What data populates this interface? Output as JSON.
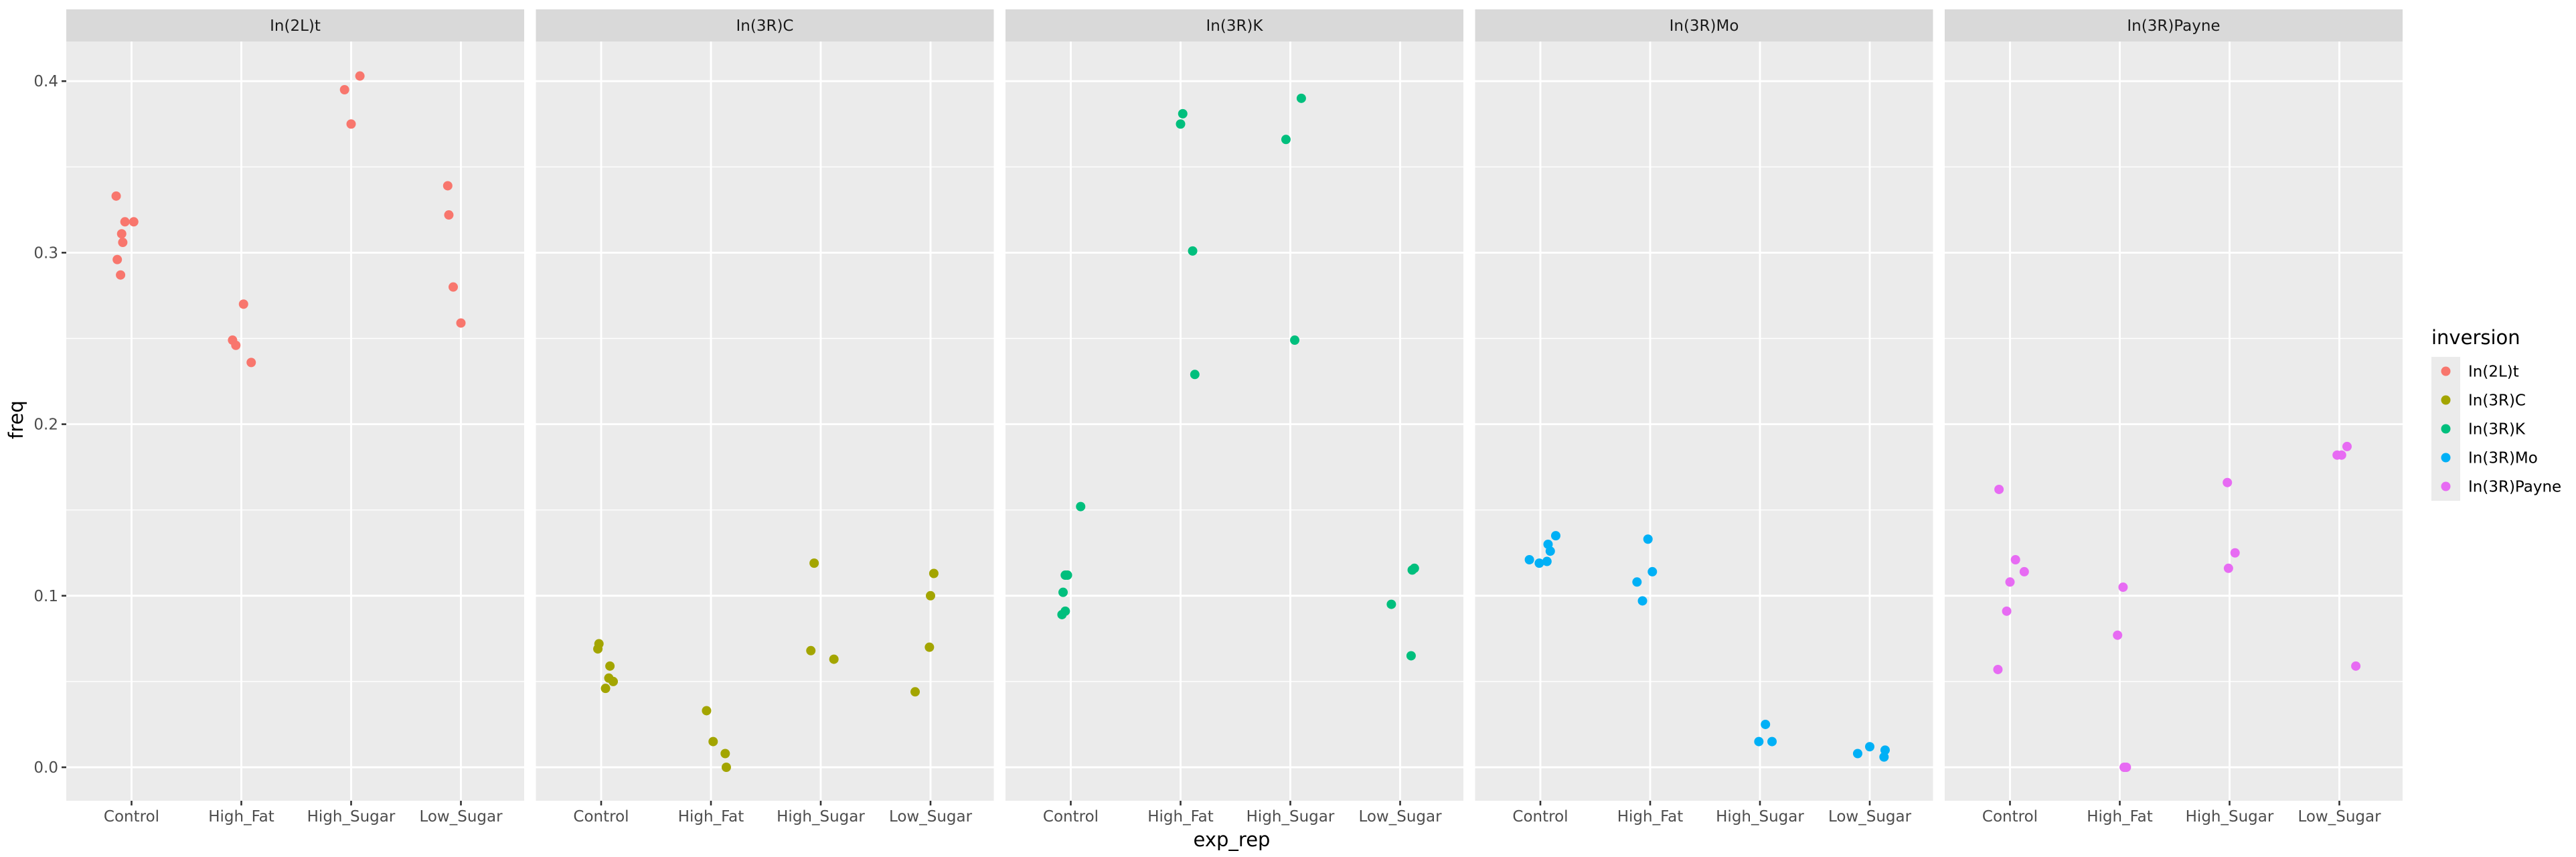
{
  "chart_data": {
    "type": "scatter",
    "xlabel": "exp_rep",
    "ylabel": "freq",
    "categories": [
      "Control",
      "High_Fat",
      "High_Sugar",
      "Low_Sugar"
    ],
    "facets": [
      "In(2L)t",
      "In(3R)C",
      "In(3R)K",
      "In(3R)Mo",
      "In(3R)Payne"
    ],
    "ylim": [
      -0.02,
      0.42
    ],
    "yticks": [
      0.0,
      0.1,
      0.2,
      0.3,
      0.4
    ],
    "ytick_labels": [
      "0.0",
      "0.1",
      "0.2",
      "0.3",
      "0.4"
    ],
    "grid": true,
    "legend": {
      "title": "inversion",
      "position": "right",
      "entries": [
        "In(2L)t",
        "In(3R)C",
        "In(3R)K",
        "In(3R)Mo",
        "In(3R)Payne"
      ]
    },
    "colors": {
      "In(2L)t": "#F8766D",
      "In(3R)C": "#A3A500",
      "In(3R)K": "#00BF7D",
      "In(3R)Mo": "#00B0F6",
      "In(3R)Payne": "#E76BF3"
    },
    "series": [
      {
        "name": "In(2L)t",
        "points": [
          {
            "x": "Control",
            "jitter": -0.14,
            "y": 0.333
          },
          {
            "x": "Control",
            "jitter": -0.06,
            "y": 0.318
          },
          {
            "x": "Control",
            "jitter": 0.02,
            "y": 0.318
          },
          {
            "x": "Control",
            "jitter": -0.09,
            "y": 0.311
          },
          {
            "x": "Control",
            "jitter": -0.08,
            "y": 0.306
          },
          {
            "x": "Control",
            "jitter": -0.13,
            "y": 0.296
          },
          {
            "x": "Control",
            "jitter": -0.1,
            "y": 0.287
          },
          {
            "x": "High_Fat",
            "jitter": 0.02,
            "y": 0.27
          },
          {
            "x": "High_Fat",
            "jitter": -0.08,
            "y": 0.249
          },
          {
            "x": "High_Fat",
            "jitter": -0.05,
            "y": 0.246
          },
          {
            "x": "High_Fat",
            "jitter": 0.09,
            "y": 0.236
          },
          {
            "x": "High_Sugar",
            "jitter": 0.08,
            "y": 0.403
          },
          {
            "x": "High_Sugar",
            "jitter": -0.06,
            "y": 0.395
          },
          {
            "x": "High_Sugar",
            "jitter": 0.0,
            "y": 0.375
          },
          {
            "x": "Low_Sugar",
            "jitter": -0.12,
            "y": 0.339
          },
          {
            "x": "Low_Sugar",
            "jitter": -0.11,
            "y": 0.322
          },
          {
            "x": "Low_Sugar",
            "jitter": -0.07,
            "y": 0.28
          },
          {
            "x": "Low_Sugar",
            "jitter": 0.0,
            "y": 0.259
          }
        ]
      },
      {
        "name": "In(3R)C",
        "points": [
          {
            "x": "Control",
            "jitter": -0.02,
            "y": 0.072
          },
          {
            "x": "Control",
            "jitter": -0.03,
            "y": 0.069
          },
          {
            "x": "Control",
            "jitter": 0.08,
            "y": 0.059
          },
          {
            "x": "Control",
            "jitter": 0.07,
            "y": 0.052
          },
          {
            "x": "Control",
            "jitter": 0.11,
            "y": 0.05
          },
          {
            "x": "Control",
            "jitter": 0.04,
            "y": 0.046
          },
          {
            "x": "High_Fat",
            "jitter": -0.04,
            "y": 0.033
          },
          {
            "x": "High_Fat",
            "jitter": 0.02,
            "y": 0.015
          },
          {
            "x": "High_Fat",
            "jitter": 0.13,
            "y": 0.008
          },
          {
            "x": "High_Fat",
            "jitter": 0.14,
            "y": 0.0
          },
          {
            "x": "High_Sugar",
            "jitter": -0.06,
            "y": 0.119
          },
          {
            "x": "High_Sugar",
            "jitter": -0.09,
            "y": 0.068
          },
          {
            "x": "High_Sugar",
            "jitter": 0.12,
            "y": 0.063
          },
          {
            "x": "Low_Sugar",
            "jitter": 0.03,
            "y": 0.113
          },
          {
            "x": "Low_Sugar",
            "jitter": 0.0,
            "y": 0.1
          },
          {
            "x": "Low_Sugar",
            "jitter": -0.01,
            "y": 0.07
          },
          {
            "x": "Low_Sugar",
            "jitter": -0.14,
            "y": 0.044
          }
        ]
      },
      {
        "name": "In(3R)K",
        "points": [
          {
            "x": "Control",
            "jitter": 0.09,
            "y": 0.152
          },
          {
            "x": "Control",
            "jitter": -0.05,
            "y": 0.112
          },
          {
            "x": "Control",
            "jitter": -0.03,
            "y": 0.112
          },
          {
            "x": "Control",
            "jitter": -0.07,
            "y": 0.102
          },
          {
            "x": "Control",
            "jitter": -0.05,
            "y": 0.091
          },
          {
            "x": "Control",
            "jitter": -0.08,
            "y": 0.089
          },
          {
            "x": "High_Fat",
            "jitter": 0.02,
            "y": 0.381
          },
          {
            "x": "High_Fat",
            "jitter": 0.0,
            "y": 0.375
          },
          {
            "x": "High_Fat",
            "jitter": 0.11,
            "y": 0.301
          },
          {
            "x": "High_Fat",
            "jitter": 0.13,
            "y": 0.229
          },
          {
            "x": "High_Sugar",
            "jitter": 0.1,
            "y": 0.39
          },
          {
            "x": "High_Sugar",
            "jitter": -0.04,
            "y": 0.366
          },
          {
            "x": "High_Sugar",
            "jitter": 0.04,
            "y": 0.249
          },
          {
            "x": "Low_Sugar",
            "jitter": 0.13,
            "y": 0.116
          },
          {
            "x": "Low_Sugar",
            "jitter": 0.11,
            "y": 0.115
          },
          {
            "x": "Low_Sugar",
            "jitter": -0.08,
            "y": 0.095
          },
          {
            "x": "Low_Sugar",
            "jitter": 0.1,
            "y": 0.065
          }
        ]
      },
      {
        "name": "In(3R)Mo",
        "points": [
          {
            "x": "Control",
            "jitter": 0.14,
            "y": 0.135
          },
          {
            "x": "Control",
            "jitter": 0.07,
            "y": 0.13
          },
          {
            "x": "Control",
            "jitter": 0.09,
            "y": 0.126
          },
          {
            "x": "Control",
            "jitter": -0.1,
            "y": 0.121
          },
          {
            "x": "Control",
            "jitter": 0.06,
            "y": 0.12
          },
          {
            "x": "Control",
            "jitter": -0.01,
            "y": 0.119
          },
          {
            "x": "High_Fat",
            "jitter": -0.02,
            "y": 0.133
          },
          {
            "x": "High_Fat",
            "jitter": 0.02,
            "y": 0.114
          },
          {
            "x": "High_Fat",
            "jitter": -0.12,
            "y": 0.108
          },
          {
            "x": "High_Fat",
            "jitter": -0.07,
            "y": 0.097
          },
          {
            "x": "High_Sugar",
            "jitter": 0.05,
            "y": 0.025
          },
          {
            "x": "High_Sugar",
            "jitter": -0.01,
            "y": 0.015
          },
          {
            "x": "High_Sugar",
            "jitter": 0.11,
            "y": 0.015
          },
          {
            "x": "Low_Sugar",
            "jitter": 0.0,
            "y": 0.012
          },
          {
            "x": "Low_Sugar",
            "jitter": 0.14,
            "y": 0.01
          },
          {
            "x": "Low_Sugar",
            "jitter": -0.11,
            "y": 0.008
          },
          {
            "x": "Low_Sugar",
            "jitter": 0.13,
            "y": 0.006
          }
        ]
      },
      {
        "name": "In(3R)Payne",
        "points": [
          {
            "x": "Control",
            "jitter": -0.1,
            "y": 0.162
          },
          {
            "x": "Control",
            "jitter": 0.05,
            "y": 0.121
          },
          {
            "x": "Control",
            "jitter": 0.13,
            "y": 0.114
          },
          {
            "x": "Control",
            "jitter": 0.0,
            "y": 0.108
          },
          {
            "x": "Control",
            "jitter": -0.03,
            "y": 0.091
          },
          {
            "x": "Control",
            "jitter": -0.11,
            "y": 0.057
          },
          {
            "x": "High_Fat",
            "jitter": 0.03,
            "y": 0.105
          },
          {
            "x": "High_Fat",
            "jitter": -0.02,
            "y": 0.077
          },
          {
            "x": "High_Fat",
            "jitter": 0.04,
            "y": 0.0
          },
          {
            "x": "High_Fat",
            "jitter": 0.06,
            "y": 0.0
          },
          {
            "x": "High_Sugar",
            "jitter": -0.02,
            "y": 0.166
          },
          {
            "x": "High_Sugar",
            "jitter": 0.05,
            "y": 0.125
          },
          {
            "x": "High_Sugar",
            "jitter": -0.01,
            "y": 0.116
          },
          {
            "x": "Low_Sugar",
            "jitter": 0.07,
            "y": 0.187
          },
          {
            "x": "Low_Sugar",
            "jitter": -0.02,
            "y": 0.182
          },
          {
            "x": "Low_Sugar",
            "jitter": 0.02,
            "y": 0.182
          },
          {
            "x": "Low_Sugar",
            "jitter": 0.15,
            "y": 0.059
          }
        ]
      }
    ]
  }
}
